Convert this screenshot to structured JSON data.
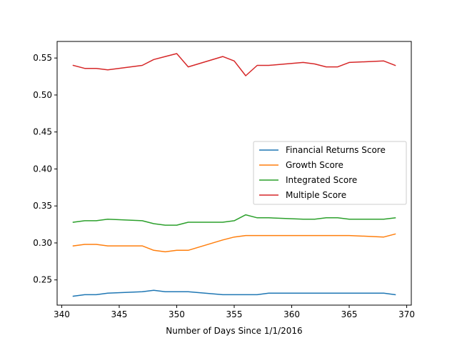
{
  "chart_data": {
    "type": "line",
    "title": "",
    "xlabel": "Number of Days Since 1/1/2016",
    "ylabel": "",
    "xlim": [
      339.6,
      370.4
    ],
    "ylim": [
      0.2159,
      0.5724
    ],
    "x_ticks": [
      340,
      345,
      350,
      355,
      360,
      365,
      370
    ],
    "y_ticks": [
      0.25,
      0.3,
      0.35,
      0.4,
      0.45,
      0.5,
      0.55
    ],
    "x_tick_labels": [
      "340",
      "345",
      "350",
      "355",
      "360",
      "365",
      "370"
    ],
    "y_tick_labels": [
      "0.25",
      "0.30",
      "0.35",
      "0.40",
      "0.45",
      "0.50",
      "0.55"
    ],
    "grid": false,
    "legend_position": "center-right",
    "x": [
      341,
      342,
      343,
      344,
      347,
      348,
      349,
      350,
      351,
      354,
      355,
      356,
      357,
      358,
      361,
      362,
      363,
      364,
      365,
      368,
      369
    ],
    "series": [
      {
        "name": "Financial Returns Score",
        "color": "#1f77b4",
        "values": [
          0.228,
          0.23,
          0.23,
          0.232,
          0.234,
          0.236,
          0.234,
          0.234,
          0.234,
          0.23,
          0.23,
          0.23,
          0.23,
          0.232,
          0.232,
          0.232,
          0.232,
          0.232,
          0.232,
          0.232,
          0.23
        ]
      },
      {
        "name": "Growth Score",
        "color": "#ff7f0e",
        "values": [
          0.296,
          0.298,
          0.298,
          0.296,
          0.296,
          0.29,
          0.288,
          0.29,
          0.29,
          0.304,
          0.308,
          0.31,
          0.31,
          0.31,
          0.31,
          0.31,
          0.31,
          0.31,
          0.31,
          0.308,
          0.312
        ]
      },
      {
        "name": "Integrated Score",
        "color": "#2ca02c",
        "values": [
          0.328,
          0.33,
          0.33,
          0.332,
          0.33,
          0.326,
          0.324,
          0.324,
          0.328,
          0.328,
          0.33,
          0.338,
          0.334,
          0.334,
          0.332,
          0.332,
          0.334,
          0.334,
          0.332,
          0.332,
          0.334
        ]
      },
      {
        "name": "Multiple Score",
        "color": "#d62728",
        "values": [
          0.54,
          0.536,
          0.536,
          0.534,
          0.54,
          0.548,
          0.552,
          0.556,
          0.538,
          0.552,
          0.546,
          0.526,
          0.54,
          0.54,
          0.544,
          0.542,
          0.538,
          0.538,
          0.544,
          0.546,
          0.54
        ]
      }
    ]
  }
}
